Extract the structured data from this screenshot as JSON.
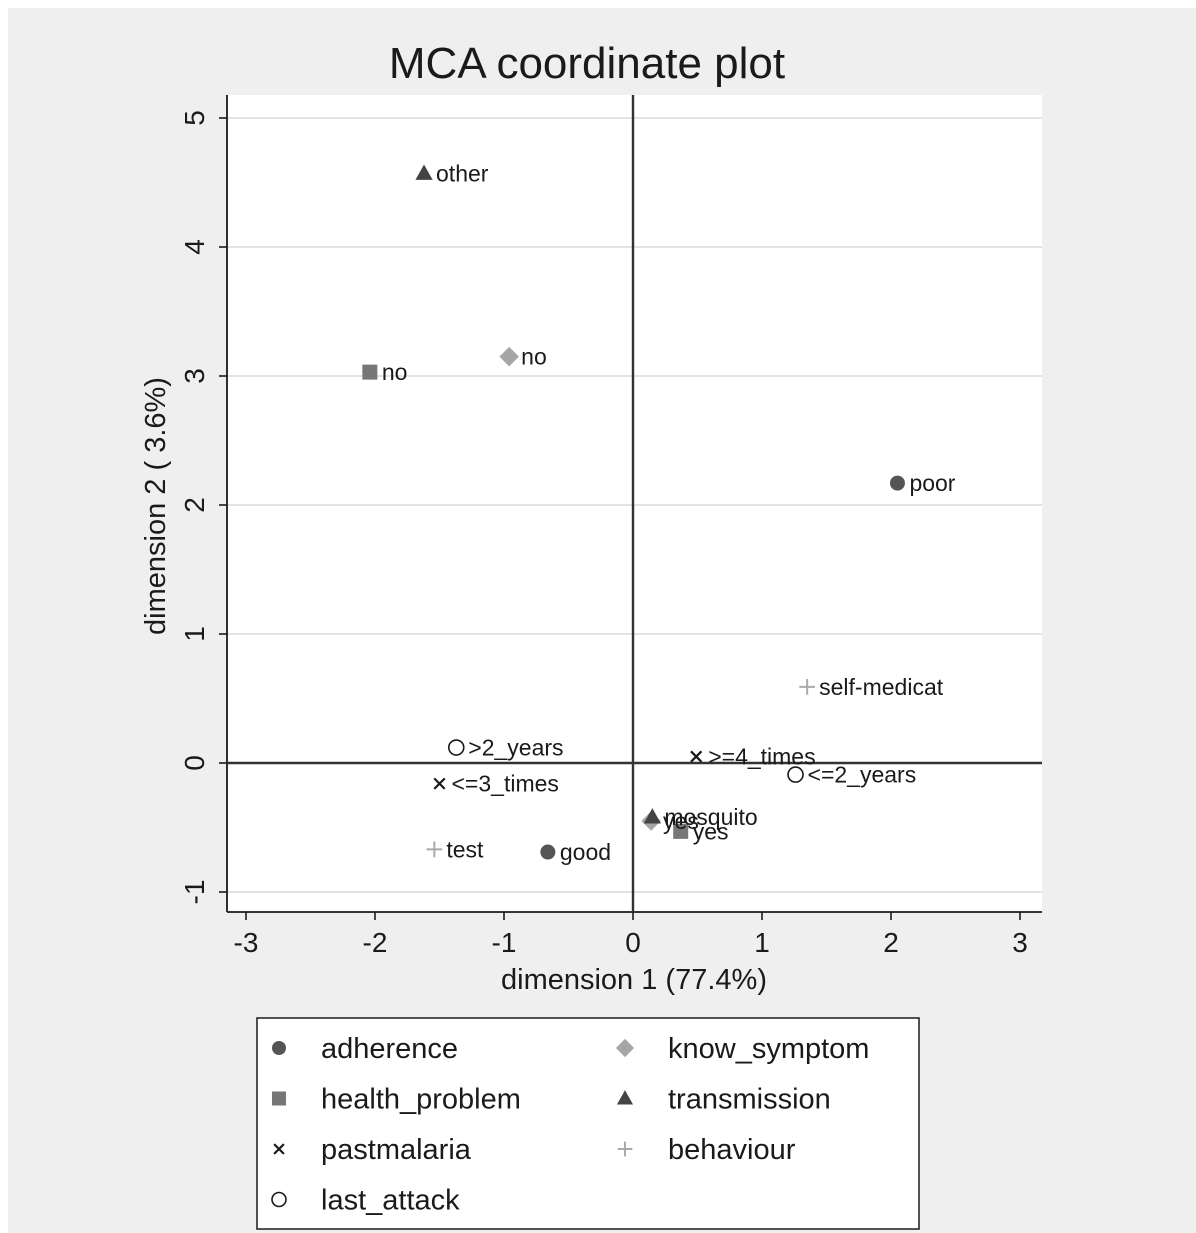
{
  "chart_data": {
    "type": "scatter",
    "title": "MCA coordinate plot",
    "xlabel": "dimension 1 (77.4%)",
    "ylabel": "dimension 2 ( 3.6%)",
    "xlim": [
      -3,
      3
    ],
    "ylim": [
      -1,
      5
    ],
    "xticks": [
      -3,
      -2,
      -1,
      0,
      1,
      2,
      3
    ],
    "yticks": [
      -1,
      0,
      1,
      2,
      3,
      4,
      5
    ],
    "grid": "horizontal",
    "series": [
      {
        "name": "adherence",
        "marker": "circle",
        "color": "#555555",
        "points": [
          {
            "x": 2.05,
            "y": 2.17,
            "label": "poor"
          },
          {
            "x": -0.66,
            "y": -0.69,
            "label": "good"
          }
        ]
      },
      {
        "name": "health_problem",
        "marker": "square",
        "color": "#777777",
        "points": [
          {
            "x": -2.04,
            "y": 3.03,
            "label": "no"
          },
          {
            "x": 0.37,
            "y": -0.53,
            "label": "yes"
          }
        ]
      },
      {
        "name": "pastmalaria",
        "marker": "x",
        "color": "#1a1a1a",
        "points": [
          {
            "x": 0.49,
            "y": 0.05,
            "label": ">=4_times"
          },
          {
            "x": -1.5,
            "y": -0.16,
            "label": "<=3_times"
          }
        ]
      },
      {
        "name": "last_attack",
        "marker": "hollow-circle",
        "color": "#1a1a1a",
        "points": [
          {
            "x": -1.37,
            "y": 0.12,
            "label": ">2_years"
          },
          {
            "x": 1.26,
            "y": -0.09,
            "label": "<=2_years"
          }
        ]
      },
      {
        "name": "know_symptom",
        "marker": "diamond",
        "color": "#a6a6a6",
        "points": [
          {
            "x": -0.96,
            "y": 3.15,
            "label": "no"
          },
          {
            "x": 0.14,
            "y": -0.45,
            "label": "yes"
          }
        ]
      },
      {
        "name": "transmission",
        "marker": "triangle",
        "color": "#444444",
        "points": [
          {
            "x": -1.62,
            "y": 4.57,
            "label": "other"
          },
          {
            "x": 0.15,
            "y": -0.42,
            "label": "mosquito"
          }
        ]
      },
      {
        "name": "behaviour",
        "marker": "plus",
        "color": "#aaaaaa",
        "points": [
          {
            "x": 1.35,
            "y": 0.59,
            "label": "self-medicat"
          },
          {
            "x": -1.54,
            "y": -0.67,
            "label": "test"
          }
        ]
      }
    ]
  }
}
